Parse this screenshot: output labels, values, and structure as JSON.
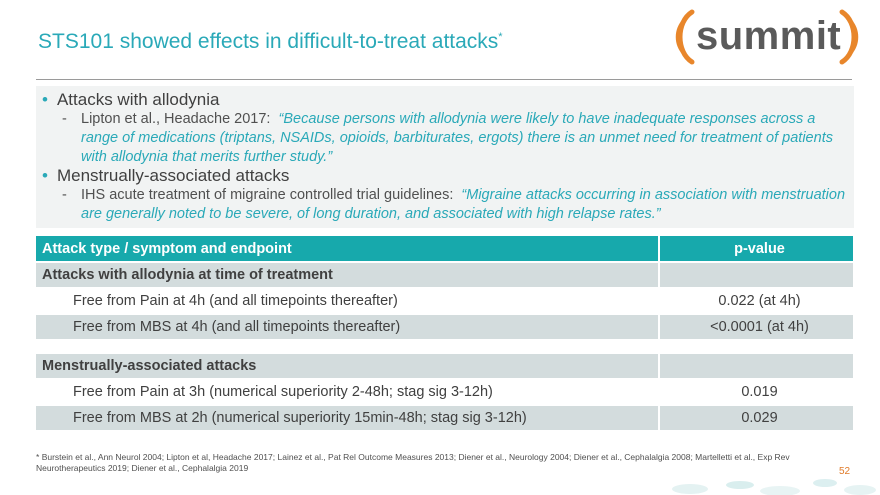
{
  "slide": {
    "title": "STS101 showed effects in difficult-to-treat attacks",
    "title_mark": "*",
    "logo_text": "summit",
    "page_number": "52"
  },
  "bullets": [
    {
      "heading": "Attacks with allodynia",
      "sub_citation": "Lipton et al., Headache 2017:",
      "sub_quote": "“Because persons with allodynia were likely to have inadequate responses across a range of medications (triptans, NSAIDs, opioids, barbiturates, ergots) there is an unmet need for treatment of patients with allodynia that merits further study.”"
    },
    {
      "heading": "Menstrually-associated attacks",
      "sub_citation": "IHS acute treatment of migraine controlled trial guidelines:",
      "sub_quote": "“Migraine attacks occurring in association with menstruation are generally noted to be severe, of long duration, and associated with high relapse rates.”"
    }
  ],
  "table": {
    "header": {
      "col1": "Attack type / symptom and endpoint",
      "col2": "p-value"
    },
    "sections": [
      {
        "title": "Attacks with allodynia at time of treatment",
        "rows": [
          {
            "label": "Free from Pain at 4h (and all timepoints thereafter)",
            "p": "0.022 (at 4h)"
          },
          {
            "label": "Free from MBS at 4h (and all timepoints thereafter)",
            "p": "<0.0001 (at 4h)"
          }
        ]
      },
      {
        "title": "Menstrually-associated attacks",
        "rows": [
          {
            "label": "Free from Pain at 3h (numerical superiority 2-48h; stag sig 3-12h)",
            "p": "0.019"
          },
          {
            "label": "Free from MBS at 2h (numerical superiority 15min-48h; stag sig 3-12h)",
            "p": "0.029"
          }
        ]
      }
    ]
  },
  "footnote": {
    "mark": "*",
    "text": "Burstein et al., Ann Neurol 2004; Lipton et al, Headache 2017; Lainez et al., Pat Rel Outcome Measures 2013; Diener et al., Neurology 2004; Diener et al., Cephalalgia 2008; Martelletti et al., Exp Rev Neurotherapeutics 2019; Diener et al., Cephalalgia 2019"
  },
  "colors": {
    "accent": "#2aa9b8",
    "table_header": "#17a9ac",
    "table_shade": "#d3dcdd",
    "logo_orange": "#e8862b",
    "page_number": "#e07b2a"
  }
}
